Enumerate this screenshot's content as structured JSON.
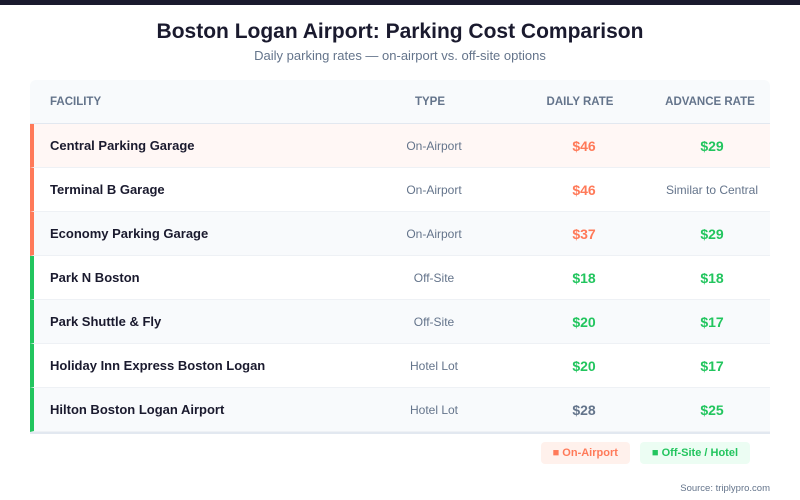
{
  "title": "Boston Logan Airport: Parking Cost Comparison",
  "subtitle": "Daily parking rates — on-airport vs. off-site options",
  "colors": {
    "on_airport": "#ff7a59",
    "off_site": "#22c55e",
    "neutral": "#64748b"
  },
  "table": {
    "headers": [
      "FACILITY",
      "TYPE",
      "DAILY RATE",
      "ADVANCE RATE"
    ],
    "rows": [
      {
        "facility": "Central Parking Garage",
        "type": "On-Airport",
        "daily": "$46",
        "advance": "$29",
        "group": "on",
        "daily_color": "on",
        "advance_color": "off",
        "bg": "#fff7f5"
      },
      {
        "facility": "Terminal B Garage",
        "type": "On-Airport",
        "daily": "$46",
        "advance": "Similar to Central",
        "group": "on",
        "daily_color": "on",
        "advance_color": "text",
        "bg": "#ffffff"
      },
      {
        "facility": "Economy Parking Garage",
        "type": "On-Airport",
        "daily": "$37",
        "advance": "$29",
        "group": "on",
        "daily_color": "on",
        "advance_color": "off",
        "bg": "#f8fafc"
      },
      {
        "facility": "Park N Boston",
        "type": "Off-Site",
        "daily": "$18",
        "advance": "$18",
        "group": "off",
        "daily_color": "off",
        "advance_color": "off",
        "bg": "#ffffff"
      },
      {
        "facility": "Park Shuttle & Fly",
        "type": "Off-Site",
        "daily": "$20",
        "advance": "$17",
        "group": "off",
        "daily_color": "off",
        "advance_color": "off",
        "bg": "#f8fafc"
      },
      {
        "facility": "Holiday Inn Express Boston Logan",
        "type": "Hotel Lot",
        "daily": "$20",
        "advance": "$17",
        "group": "off",
        "daily_color": "off",
        "advance_color": "off",
        "bg": "#ffffff"
      },
      {
        "facility": "Hilton Boston Logan Airport",
        "type": "Hotel Lot",
        "daily": "$28",
        "advance": "$25",
        "group": "off",
        "daily_color": "neutral",
        "advance_color": "off",
        "bg": "#f8fafc"
      }
    ]
  },
  "legend": {
    "on_airport": "■ On-Airport",
    "off_site": "■ Off-Site / Hotel"
  },
  "source": "Source: triplypro.com"
}
